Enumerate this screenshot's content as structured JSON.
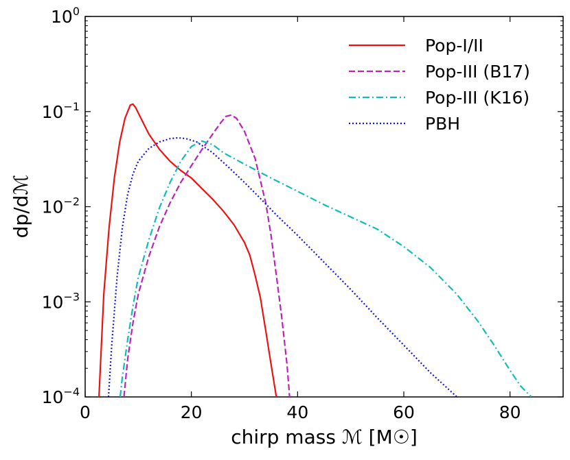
{
  "chart_data": {
    "type": "line",
    "title": "",
    "xlabel": "chirp mass ℳ [M☉]",
    "ylabel": "dp/dℳ",
    "xlim": [
      0,
      90
    ],
    "ylim": [
      0.0001,
      1
    ],
    "yscale": "log",
    "x_ticks": [
      0,
      20,
      40,
      60,
      80
    ],
    "x_tick_labels": [
      "0",
      "20",
      "40",
      "60",
      "80"
    ],
    "y_ticks": [
      0.0001,
      0.001,
      0.01,
      0.1,
      1
    ],
    "y_tick_labels": [
      {
        "base": "10",
        "exp": "−4"
      },
      {
        "base": "10",
        "exp": "−3"
      },
      {
        "base": "10",
        "exp": "−2"
      },
      {
        "base": "10",
        "exp": "−1"
      },
      {
        "base": "10",
        "exp": "0"
      }
    ],
    "legend_position": "top-right",
    "series": [
      {
        "name": "Pop-I/II",
        "color": "#ee1111",
        "style": "solid",
        "points": [
          [
            2.6,
            0.0001
          ],
          [
            3.5,
            0.0012
          ],
          [
            4.5,
            0.006
          ],
          [
            5.5,
            0.02
          ],
          [
            6.5,
            0.048
          ],
          [
            7.5,
            0.085
          ],
          [
            8.5,
            0.117
          ],
          [
            9.0,
            0.12
          ],
          [
            9.5,
            0.11
          ],
          [
            10.5,
            0.085
          ],
          [
            12,
            0.058
          ],
          [
            14,
            0.04
          ],
          [
            16,
            0.03
          ],
          [
            18,
            0.024
          ],
          [
            20,
            0.02
          ],
          [
            22,
            0.0155
          ],
          [
            24,
            0.012
          ],
          [
            26,
            0.009
          ],
          [
            28,
            0.0065
          ],
          [
            30,
            0.0042
          ],
          [
            31,
            0.0031
          ],
          [
            32,
            0.0019
          ],
          [
            33,
            0.0011
          ],
          [
            34,
            0.0005
          ],
          [
            35,
            0.00022
          ],
          [
            36,
            0.0001
          ]
        ]
      },
      {
        "name": "Pop-III (B17)",
        "color": "#bb22bb",
        "style": "dashed",
        "points": [
          [
            7.3,
            0.0001
          ],
          [
            8,
            0.00025
          ],
          [
            9,
            0.0006
          ],
          [
            10,
            0.0012
          ],
          [
            12,
            0.003
          ],
          [
            14,
            0.0062
          ],
          [
            16,
            0.011
          ],
          [
            18,
            0.018
          ],
          [
            20,
            0.027
          ],
          [
            22,
            0.04
          ],
          [
            24,
            0.058
          ],
          [
            25.5,
            0.076
          ],
          [
            26.5,
            0.089
          ],
          [
            27.5,
            0.092
          ],
          [
            28.5,
            0.085
          ],
          [
            30,
            0.062
          ],
          [
            32,
            0.032
          ],
          [
            34,
            0.011
          ],
          [
            35,
            0.005
          ],
          [
            36,
            0.0019
          ],
          [
            37,
            0.0007
          ],
          [
            38,
            0.00022
          ],
          [
            38.5,
            0.0001
          ]
        ]
      },
      {
        "name": "Pop-III (K16)",
        "color": "#11bbbb",
        "style": "dashdot",
        "points": [
          [
            6.6,
            0.0001
          ],
          [
            7,
            0.00016
          ],
          [
            8,
            0.0004
          ],
          [
            9,
            0.0009
          ],
          [
            10,
            0.0018
          ],
          [
            12,
            0.0045
          ],
          [
            14,
            0.0098
          ],
          [
            16,
            0.018
          ],
          [
            18,
            0.03
          ],
          [
            20,
            0.043
          ],
          [
            22,
            0.049
          ],
          [
            24,
            0.045
          ],
          [
            26,
            0.037
          ],
          [
            30,
            0.028
          ],
          [
            35,
            0.02
          ],
          [
            40,
            0.0145
          ],
          [
            45,
            0.0105
          ],
          [
            50,
            0.0078
          ],
          [
            55,
            0.0058
          ],
          [
            60,
            0.0038
          ],
          [
            65,
            0.0023
          ],
          [
            70,
            0.0012
          ],
          [
            74,
            0.00062
          ],
          [
            77,
            0.00035
          ],
          [
            80,
            0.00019
          ],
          [
            82,
            0.00013
          ],
          [
            84,
            0.0001
          ]
        ]
      },
      {
        "name": "PBH",
        "color": "#1111dd",
        "style": "dotted",
        "points": [
          [
            4.4,
            0.0001
          ],
          [
            5,
            0.00035
          ],
          [
            6,
            0.0018
          ],
          [
            7,
            0.006
          ],
          [
            8,
            0.0135
          ],
          [
            9,
            0.022
          ],
          [
            10,
            0.03
          ],
          [
            12,
            0.041
          ],
          [
            14,
            0.048
          ],
          [
            16,
            0.052
          ],
          [
            17.5,
            0.053
          ],
          [
            19,
            0.052
          ],
          [
            21,
            0.048
          ],
          [
            24,
            0.037
          ],
          [
            27,
            0.026
          ],
          [
            30,
            0.018
          ],
          [
            33,
            0.0122
          ],
          [
            36,
            0.0082
          ],
          [
            40,
            0.005
          ],
          [
            45,
            0.0026
          ],
          [
            50,
            0.00135
          ],
          [
            55,
            0.00068
          ],
          [
            60,
            0.00035
          ],
          [
            65,
            0.00018
          ],
          [
            70,
            0.0001
          ]
        ]
      }
    ]
  }
}
